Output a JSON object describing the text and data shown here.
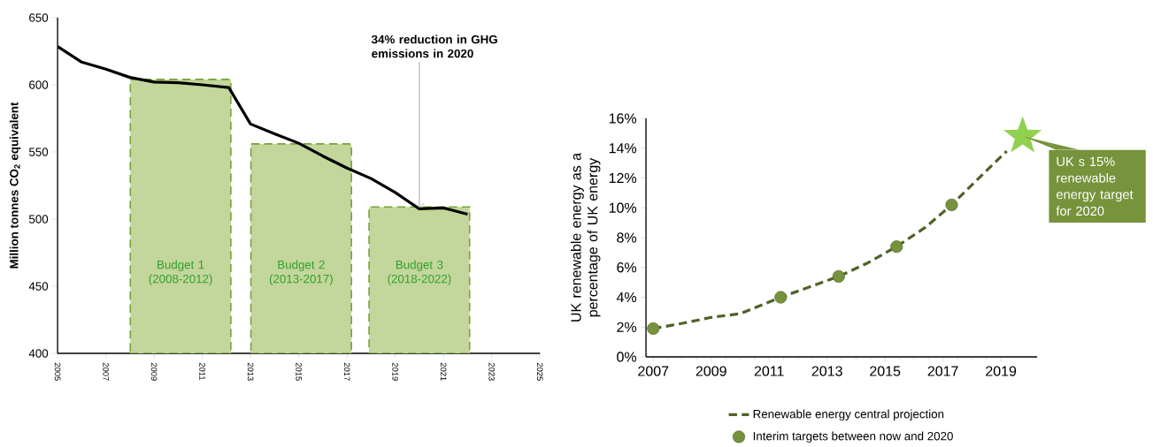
{
  "chart_data": [
    {
      "type": "line",
      "ylabel": "Million tonnes CO$_{2}$ equivalent",
      "xlim": [
        2005,
        2025
      ],
      "ylim": [
        400,
        650
      ],
      "xticks": [
        2005,
        2007,
        2009,
        2011,
        2013,
        2015,
        2017,
        2019,
        2021,
        2023,
        2025
      ],
      "yticks": [
        400,
        450,
        500,
        550,
        600,
        650
      ],
      "annotations": [
        {
          "text": "34% reduction in GHG emissions in 2020",
          "x": 2020,
          "y": 508
        },
        "Budget 1 (2008-2012)",
        "Budget 2 (2013-2017)",
        "Budget 3 (2018-2022)"
      ],
      "series": [
        {
          "type": "bar",
          "color": "#c3d69b",
          "line_style": "dashed",
          "x": [
            2010.1,
            2015.1,
            2020
          ],
          "values": [
            604,
            556,
            509
          ]
        },
        {
          "color": "#000000",
          "x": [
            2005,
            2006,
            2007,
            2008,
            2009,
            2010,
            2011,
            2012.1,
            2013,
            2014,
            2015,
            2016,
            2017,
            2018,
            2019,
            2020,
            2021,
            2022
          ],
          "values": [
            628.6,
            616.9,
            611.7,
            605.5,
            602.1,
            601.5,
            600,
            597.9,
            570.8,
            563.5,
            556.5,
            546.9,
            538,
            530.2,
            519.8,
            507.6,
            508.3,
            503.6
          ]
        }
      ]
    },
    {
      "type": "line",
      "ylabel": "UK renewable energy as a percentage of UK energy",
      "xlim": [
        2006.75,
        2020.25
      ],
      "ylim": [
        0,
        16
      ],
      "xticks": [
        2007,
        2009,
        2011,
        2013,
        2015,
        2017,
        2019
      ],
      "yticks": [
        {
          "value": 0,
          "label": "0%"
        },
        {
          "value": 2,
          "label": "2%"
        },
        {
          "value": 4,
          "label": "4%"
        },
        {
          "value": 6,
          "label": "6%"
        },
        {
          "value": 8,
          "label": "8%"
        },
        {
          "value": 10,
          "label": "10%"
        },
        {
          "value": 12,
          "label": "12%"
        },
        {
          "value": 14,
          "label": "14%"
        },
        {
          "value": 16,
          "label": "16%"
        }
      ],
      "legend": "bottom",
      "annotations": [
        {
          "text": "UK s 15% renewable energy target for 2020",
          "x": 2019.75,
          "y": 14.8
        }
      ],
      "series": [
        {
          "name": "Renewable energy central projection",
          "color": "#4f6228",
          "line_style": "dashed",
          "x": [
            2007,
            2008,
            2009,
            2010,
            2011.4,
            2012.4,
            2013.4,
            2014.4,
            2015.4,
            2016.4,
            2017.3,
            2018.4,
            2019.2
          ],
          "values": [
            1.9,
            2.25,
            2.65,
            2.9,
            4.0,
            4.7,
            5.4,
            6.3,
            7.4,
            8.7,
            10.2,
            12.3,
            13.8
          ]
        },
        {
          "type": "scatter",
          "name": "Interim targets between now and 2020",
          "color": "#76923c",
          "marker": "circle",
          "x": [
            2007,
            2011.4,
            2013.4,
            2015.4,
            2017.3
          ],
          "values": [
            1.9,
            4.0,
            5.4,
            7.4,
            10.2
          ]
        },
        {
          "type": "scatter",
          "color": "#92d050",
          "marker": "star",
          "x": [
            2019.75
          ],
          "values": [
            14.8
          ]
        }
      ]
    }
  ]
}
